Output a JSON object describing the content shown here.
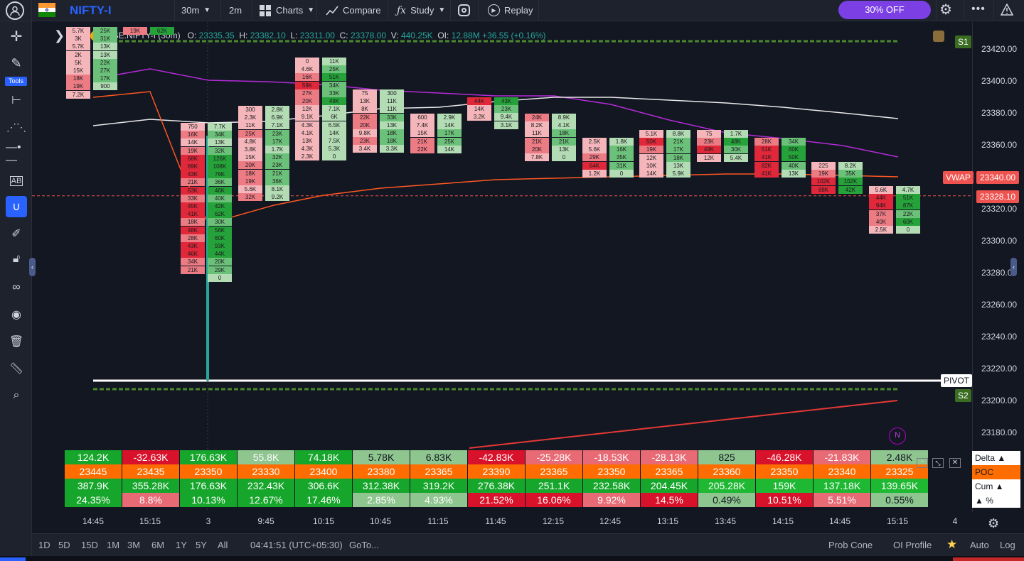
{
  "symbol": {
    "name": "NIFTY-I",
    "flag": "india-flag-icon"
  },
  "toolbar": {
    "timeframe": "30m",
    "interval2": "2m",
    "charts": "Charts",
    "compare": "Compare",
    "study": "Study",
    "replay": "Replay",
    "promo": "30% OFF"
  },
  "sidebar": {
    "tools_label": "Tools"
  },
  "ohlc": {
    "sym": "NSE:NIFTY-I (30m)",
    "o_label": "O:",
    "o": "23335.35",
    "h_label": "H:",
    "h": "23382.10",
    "l_label": "L:",
    "l": "23311.00",
    "c_label": "C:",
    "c": "23378.00",
    "v_label": "V:",
    "v": "440.25K",
    "oi_label": "OI:",
    "oi": "12.88M",
    "chg": "+36.55",
    "chg_pct": "(+0.16%)"
  },
  "yaxis": {
    "labels": [
      "23420.00",
      "23400.00",
      "23380.00",
      "23360.00",
      "23340.00",
      "23320.00",
      "23300.00",
      "23280.00",
      "23260.00",
      "23240.00",
      "23220.00",
      "23200.00",
      "23180.00"
    ],
    "vwap_label": "VWAP",
    "vwap_value": "23340.00",
    "last_price": "23328.10",
    "pivot_label": "PIVOT",
    "s1_label": "S1",
    "s2_label": "S2",
    "n_marker": "N"
  },
  "xaxis": {
    "labels": [
      "14:45",
      "15:15",
      "3",
      "9:45",
      "10:15",
      "10:45",
      "11:15",
      "11:45",
      "12:15",
      "12:45",
      "13:15",
      "13:45",
      "14:15",
      "14:45",
      "15:15",
      "4"
    ]
  },
  "bottombar": {
    "ranges": [
      "1D",
      "5D",
      "15D",
      "1M",
      "3M",
      "6M",
      "1Y",
      "5Y",
      "All"
    ],
    "clock": "04:41:51 (UTC+05:30)",
    "goto": "GoTo...",
    "prob_cone": "Prob Cone",
    "oi_profile": "OI Profile",
    "auto": "Auto",
    "log": "Log"
  },
  "stats": {
    "delta": [
      "124.2K",
      "-32.63K",
      "176.63K",
      "55.8K",
      "74.18K",
      "5.78K",
      "6.83K",
      "-42.83K",
      "-25.28K",
      "-18.53K",
      "-28.13K",
      "825",
      "-46.28K",
      "-21.83K",
      "2.48K"
    ],
    "poc": [
      "23445",
      "23435",
      "23350",
      "23330",
      "23400",
      "23380",
      "23365",
      "23390",
      "23365",
      "23350",
      "23365",
      "23360",
      "23350",
      "23340",
      "23325"
    ],
    "cum": [
      "387.9K",
      "355.28K",
      "176.63K",
      "232.43K",
      "306.6K",
      "312.38K",
      "319.2K",
      "276.38K",
      "251.1K",
      "232.58K",
      "204.45K",
      "205.28K",
      "159K",
      "137.18K",
      "139.65K"
    ],
    "pct": [
      "24.35%",
      "8.8%",
      "10.13%",
      "12.67%",
      "17.46%",
      "2.85%",
      "4.93%",
      "21.52%",
      "16.06%",
      "9.92%",
      "14.5%",
      "0.49%",
      "10.51%",
      "5.51%",
      "0.55%"
    ],
    "legend": [
      "Delta ▲",
      "POC",
      "Cum ▲",
      "▲ %"
    ]
  },
  "footprints": [
    {
      "col": 0,
      "left": [
        "5.7K",
        "3K",
        "5.7K",
        "2K",
        "5K",
        "15K",
        "18K",
        "19K",
        "7.2K"
      ],
      "right": [
        "25K",
        "31K",
        "13K",
        "13K",
        "22K",
        "27K",
        "17K",
        "900"
      ]
    },
    {
      "col": 1,
      "left": [
        "19K"
      ],
      "right": [
        "62K"
      ]
    },
    {
      "col": 2,
      "left": [
        "750",
        "16K",
        "14K",
        "19K",
        "68K",
        "89K",
        "43K",
        "21K",
        "63K",
        "33K",
        "45K",
        "41K",
        "18K",
        "48K",
        "28K",
        "43K",
        "46K",
        "34K",
        "21K"
      ],
      "right": [
        "7.7K",
        "34K",
        "13K",
        "32K",
        "126K",
        "108K",
        "76K",
        "36K",
        "46K",
        "40K",
        "42K",
        "62K",
        "30K",
        "56K",
        "60K",
        "93K",
        "44K",
        "20K",
        "29K",
        "0"
      ]
    },
    {
      "col": 3,
      "left": [
        "300",
        "2.3K",
        "11K",
        "25K",
        "4.8K",
        "3.8K",
        "15K",
        "20K",
        "18K",
        "19K",
        "5.6K",
        "32K"
      ],
      "right": [
        "2.8K",
        "6.9K",
        "7.1K",
        "23K",
        "17K",
        "1.7K",
        "32K",
        "23K",
        "21K",
        "36K",
        "8.1K",
        "9.2K"
      ]
    },
    {
      "col": 4,
      "left": [
        "0",
        "4.6K",
        "16K",
        "59K",
        "27K",
        "20K",
        "12K",
        "9.1K",
        "4.3K",
        "4.1K",
        "13K",
        "4.3K",
        "2.3K"
      ],
      "right": [
        "11K",
        "25K",
        "51K",
        "34K",
        "33K",
        "49K",
        "7.1K",
        "6K",
        "6.5K",
        "14K",
        "7.5K",
        "5.3K",
        "0"
      ]
    },
    {
      "col": 5,
      "left": [
        "75",
        "13K",
        "8K",
        "22K",
        "20K",
        "9.8K",
        "23K",
        "3.4K"
      ],
      "right": [
        "300",
        "11K",
        "11K",
        "33K",
        "13K",
        "18K",
        "18K",
        "3.3K"
      ]
    },
    {
      "col": 6,
      "left": [
        "600",
        "7.4K",
        "15K",
        "21K",
        "22K"
      ],
      "right": [
        "2.9K",
        "14K",
        "17K",
        "25K",
        "14K"
      ]
    },
    {
      "col": 7,
      "left": [
        "44K",
        "14K",
        "3.2K"
      ],
      "right": [
        "43K",
        "23K",
        "9.4K",
        "3.1K"
      ]
    },
    {
      "col": 8,
      "left": [
        "24K",
        "8.2K",
        "11K",
        "21K",
        "20K",
        "7.8K"
      ],
      "right": [
        "8.9K",
        "4.1K",
        "18K",
        "21K",
        "13K",
        "0"
      ]
    },
    {
      "col": 9,
      "left": [
        "2.5K",
        "5.6K",
        "29K",
        "64K",
        "1.2K"
      ],
      "right": [
        "1.8K",
        "16K",
        "35K",
        "31K",
        "0"
      ]
    },
    {
      "col": 10,
      "left": [
        "5.1K",
        "50K",
        "19K",
        "12K",
        "10K",
        "14K"
      ],
      "right": [
        "8.8K",
        "21K",
        "17K",
        "18K",
        "13K",
        "5.9K"
      ]
    },
    {
      "col": 11,
      "left": [
        "75",
        "23K",
        "49K",
        "12K"
      ],
      "right": [
        "1.7K",
        "48K",
        "30K",
        "5.4K"
      ]
    },
    {
      "col": 12,
      "left": [
        "28K",
        "51K",
        "41K",
        "82K",
        "41K"
      ],
      "right": [
        "34K",
        "60K",
        "50K",
        "40K",
        "13K"
      ]
    },
    {
      "col": 13,
      "left": [
        "225",
        "19K",
        "102K",
        "88K"
      ],
      "right": [
        "8.2K",
        "35K",
        "102K",
        "42K"
      ]
    },
    {
      "col": 14,
      "left": [
        "5.6K",
        "44K",
        "94K",
        "37K",
        "40K",
        "2.5K"
      ],
      "right": [
        "4.7K",
        "51K",
        "87K",
        "22K",
        "60K",
        "0"
      ]
    }
  ]
}
